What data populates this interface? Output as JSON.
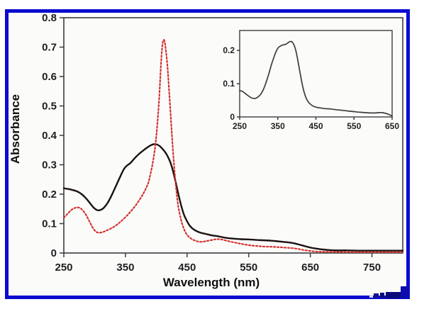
{
  "figure": {
    "border_color": "#0b0bd0",
    "plot_background": "#fbfbfa",
    "axis_color": "#3d3d3d",
    "tick_label_color": "#1e1e1e"
  },
  "chart_data": [
    {
      "type": "line",
      "title": "",
      "xlabel": "Wavelength (nm)",
      "ylabel": "Absorbance",
      "xlim": [
        250,
        800
      ],
      "ylim": [
        0,
        0.8
      ],
      "grid": false,
      "legend": null,
      "x_ticks": [
        250,
        350,
        450,
        550,
        650,
        750
      ],
      "x_tick_labels": [
        "250",
        "350",
        "450",
        "550",
        "650",
        "750"
      ],
      "y_ticks": [
        0,
        0.1,
        0.2,
        0.3,
        0.4,
        0.5,
        0.6,
        0.7,
        0.8
      ],
      "y_tick_labels": [
        "0",
        "0.1",
        "0.2",
        "0.3",
        "0.4",
        "0.5",
        "0.6",
        "0.7",
        "0.8"
      ],
      "series": [
        {
          "name": "black-solid-spectrum",
          "color": "#1a1210",
          "style": "solid",
          "x": [
            250,
            256,
            263,
            271,
            279,
            286,
            293,
            299,
            304,
            309,
            315,
            321,
            328,
            335,
            342,
            348,
            353,
            358,
            364,
            371,
            378,
            385,
            391,
            396,
            401,
            406,
            411,
            416,
            421,
            425,
            428,
            431,
            434,
            437,
            440,
            443,
            446,
            450,
            454,
            459,
            465,
            472,
            480,
            490,
            500,
            512,
            525,
            538,
            552,
            565,
            578,
            592,
            605,
            615,
            624,
            633,
            642,
            651,
            660,
            670,
            682,
            695,
            710,
            730,
            760,
            800
          ],
          "y": [
            0.22,
            0.218,
            0.215,
            0.21,
            0.2,
            0.186,
            0.168,
            0.153,
            0.146,
            0.146,
            0.154,
            0.17,
            0.198,
            0.23,
            0.262,
            0.287,
            0.298,
            0.306,
            0.32,
            0.335,
            0.347,
            0.358,
            0.366,
            0.37,
            0.369,
            0.363,
            0.352,
            0.338,
            0.318,
            0.295,
            0.272,
            0.246,
            0.218,
            0.19,
            0.165,
            0.143,
            0.125,
            0.108,
            0.094,
            0.083,
            0.075,
            0.069,
            0.065,
            0.06,
            0.057,
            0.052,
            0.049,
            0.047,
            0.046,
            0.044,
            0.043,
            0.041,
            0.038,
            0.036,
            0.033,
            0.028,
            0.023,
            0.018,
            0.015,
            0.012,
            0.01,
            0.009,
            0.009,
            0.008,
            0.008,
            0.008
          ]
        },
        {
          "name": "red-dashed-spectrum",
          "color": "#d42c28",
          "style": "dashed",
          "x": [
            250,
            256,
            262,
            268,
            273,
            279,
            285,
            291,
            297,
            302,
            307,
            313,
            320,
            328,
            336,
            344,
            352,
            360,
            368,
            375,
            381,
            387,
            391,
            395,
            399,
            402,
            405,
            407,
            409,
            411,
            413,
            415,
            418,
            421,
            424,
            427,
            430,
            433,
            436,
            440,
            444,
            448,
            453,
            459,
            466,
            474,
            482,
            490,
            498,
            506,
            514,
            524,
            536,
            549,
            562,
            576,
            590,
            604,
            618,
            630,
            640,
            650,
            660,
            672,
            688,
            710,
            750,
            800
          ],
          "y": [
            0.12,
            0.133,
            0.146,
            0.153,
            0.155,
            0.149,
            0.133,
            0.11,
            0.086,
            0.073,
            0.069,
            0.071,
            0.077,
            0.085,
            0.096,
            0.11,
            0.126,
            0.145,
            0.166,
            0.188,
            0.21,
            0.238,
            0.272,
            0.315,
            0.375,
            0.445,
            0.535,
            0.615,
            0.685,
            0.72,
            0.723,
            0.7,
            0.64,
            0.548,
            0.448,
            0.352,
            0.27,
            0.205,
            0.155,
            0.115,
            0.087,
            0.068,
            0.055,
            0.046,
            0.04,
            0.038,
            0.041,
            0.044,
            0.047,
            0.046,
            0.042,
            0.037,
            0.032,
            0.027,
            0.024,
            0.022,
            0.021,
            0.019,
            0.017,
            0.014,
            0.01,
            0.007,
            0.005,
            0.004,
            0.004,
            0.003,
            0.003,
            0.003
          ]
        }
      ]
    },
    {
      "type": "line",
      "title": "",
      "xlabel": "",
      "ylabel": "",
      "inset": true,
      "xlim": [
        250,
        650
      ],
      "ylim": [
        0,
        0.26
      ],
      "grid": false,
      "legend": null,
      "x_ticks": [
        250,
        350,
        450,
        550,
        650
      ],
      "x_tick_labels": [
        "250",
        "350",
        "450",
        "550",
        "650"
      ],
      "y_ticks": [
        0,
        0.1,
        0.2
      ],
      "y_tick_labels": [
        "0",
        "0.1",
        "0.2"
      ],
      "series": [
        {
          "name": "inset-spectrum",
          "color": "#3c3c3c",
          "style": "solid",
          "x": [
            250,
            257,
            264,
            271,
            278,
            285,
            292,
            298,
            305,
            312,
            319,
            326,
            333,
            340,
            346,
            352,
            358,
            365,
            372,
            378,
            383,
            388,
            393,
            398,
            403,
            408,
            413,
            418,
            424,
            430,
            437,
            444,
            452,
            462,
            474,
            488,
            502,
            518,
            534,
            550,
            566,
            580,
            594,
            606,
            616,
            624,
            632,
            640,
            646,
            650
          ],
          "y": [
            0.079,
            0.077,
            0.071,
            0.065,
            0.059,
            0.056,
            0.056,
            0.06,
            0.068,
            0.082,
            0.103,
            0.128,
            0.156,
            0.18,
            0.198,
            0.209,
            0.214,
            0.217,
            0.219,
            0.224,
            0.227,
            0.225,
            0.215,
            0.196,
            0.168,
            0.136,
            0.105,
            0.079,
            0.058,
            0.045,
            0.037,
            0.032,
            0.029,
            0.027,
            0.025,
            0.024,
            0.022,
            0.02,
            0.018,
            0.016,
            0.014,
            0.013,
            0.012,
            0.012,
            0.013,
            0.013,
            0.011,
            0.008,
            0.005,
            0.003
          ]
        }
      ]
    }
  ]
}
